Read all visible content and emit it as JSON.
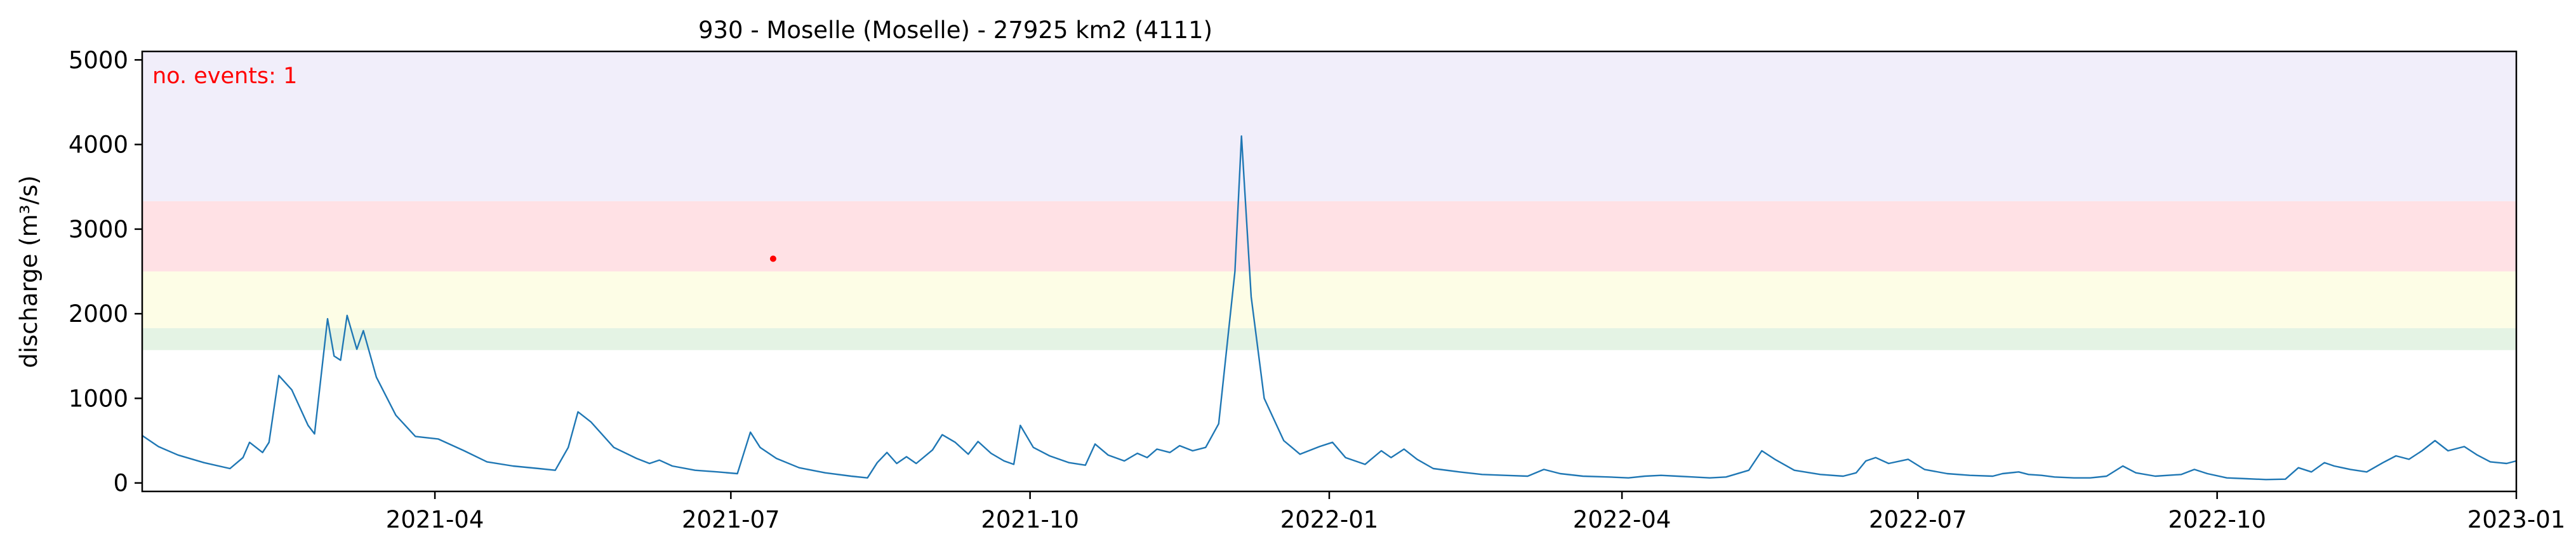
{
  "chart_data": {
    "type": "line",
    "title": "930 - Moselle (Moselle) - 27925 km2 (4111)",
    "xlabel": "",
    "ylabel": "discharge (m³/s)",
    "xlim": [
      "2021-01-01",
      "2023-01-01"
    ],
    "ylim": [
      -100,
      5100
    ],
    "x_ticks": [
      "2021-04",
      "2021-07",
      "2021-10",
      "2022-01",
      "2022-04",
      "2022-07",
      "2022-10",
      "2023-01"
    ],
    "y_ticks": [
      0,
      1000,
      2000,
      3000,
      4000,
      5000
    ],
    "grid": false,
    "line_color": "#1f77b4",
    "threshold_bands": [
      {
        "from": 1570,
        "to": 1830,
        "color": "#e4f3e4"
      },
      {
        "from": 1830,
        "to": 2500,
        "color": "#fdfde6"
      },
      {
        "from": 2500,
        "to": 3330,
        "color": "#ffe1e5"
      },
      {
        "from": 3330,
        "to": 5100,
        "color": "#f1eefa"
      }
    ],
    "annotation": {
      "text": "no. events: 1",
      "color": "#ff0000"
    },
    "events": [
      {
        "x": "2021-07-14",
        "y": 2650,
        "color": "#ff0000"
      }
    ],
    "series": [
      {
        "points": [
          [
            "2021-01-01",
            560
          ],
          [
            "2021-01-06",
            430
          ],
          [
            "2021-01-12",
            330
          ],
          [
            "2021-01-20",
            240
          ],
          [
            "2021-01-28",
            170
          ],
          [
            "2021-02-01",
            300
          ],
          [
            "2021-02-03",
            480
          ],
          [
            "2021-02-07",
            360
          ],
          [
            "2021-02-09",
            480
          ],
          [
            "2021-02-12",
            1270
          ],
          [
            "2021-02-16",
            1100
          ],
          [
            "2021-02-21",
            680
          ],
          [
            "2021-02-23",
            580
          ],
          [
            "2021-02-27",
            1940
          ],
          [
            "2021-03-01",
            1500
          ],
          [
            "2021-03-03",
            1450
          ],
          [
            "2021-03-05",
            1980
          ],
          [
            "2021-03-08",
            1580
          ],
          [
            "2021-03-10",
            1800
          ],
          [
            "2021-03-14",
            1250
          ],
          [
            "2021-03-20",
            800
          ],
          [
            "2021-03-26",
            550
          ],
          [
            "2021-04-02",
            520
          ],
          [
            "2021-04-10",
            380
          ],
          [
            "2021-04-17",
            250
          ],
          [
            "2021-04-25",
            200
          ],
          [
            "2021-05-03",
            170
          ],
          [
            "2021-05-08",
            150
          ],
          [
            "2021-05-12",
            420
          ],
          [
            "2021-05-15",
            840
          ],
          [
            "2021-05-19",
            720
          ],
          [
            "2021-05-26",
            420
          ],
          [
            "2021-06-02",
            290
          ],
          [
            "2021-06-06",
            230
          ],
          [
            "2021-06-09",
            270
          ],
          [
            "2021-06-13",
            200
          ],
          [
            "2021-06-20",
            150
          ],
          [
            "2021-06-27",
            130
          ],
          [
            "2021-07-03",
            110
          ],
          [
            "2021-07-07",
            600
          ],
          [
            "2021-07-10",
            420
          ],
          [
            "2021-07-15",
            290
          ],
          [
            "2021-07-22",
            180
          ],
          [
            "2021-07-30",
            120
          ],
          [
            "2021-08-07",
            80
          ],
          [
            "2021-08-12",
            60
          ],
          [
            "2021-08-15",
            240
          ],
          [
            "2021-08-18",
            360
          ],
          [
            "2021-08-21",
            230
          ],
          [
            "2021-08-24",
            310
          ],
          [
            "2021-08-27",
            230
          ],
          [
            "2021-09-01",
            390
          ],
          [
            "2021-09-04",
            570
          ],
          [
            "2021-09-08",
            480
          ],
          [
            "2021-09-12",
            340
          ],
          [
            "2021-09-15",
            490
          ],
          [
            "2021-09-19",
            350
          ],
          [
            "2021-09-23",
            260
          ],
          [
            "2021-09-26",
            220
          ],
          [
            "2021-09-28",
            680
          ],
          [
            "2021-10-02",
            420
          ],
          [
            "2021-10-07",
            320
          ],
          [
            "2021-10-13",
            240
          ],
          [
            "2021-10-18",
            210
          ],
          [
            "2021-10-21",
            460
          ],
          [
            "2021-10-25",
            330
          ],
          [
            "2021-10-30",
            260
          ],
          [
            "2021-11-03",
            350
          ],
          [
            "2021-11-06",
            300
          ],
          [
            "2021-11-09",
            400
          ],
          [
            "2021-11-13",
            360
          ],
          [
            "2021-11-16",
            440
          ],
          [
            "2021-11-20",
            380
          ],
          [
            "2021-11-24",
            420
          ],
          [
            "2021-11-28",
            700
          ],
          [
            "2021-12-03",
            2500
          ],
          [
            "2021-12-05",
            4100
          ],
          [
            "2021-12-08",
            2200
          ],
          [
            "2021-12-12",
            1000
          ],
          [
            "2021-12-18",
            500
          ],
          [
            "2021-12-23",
            340
          ],
          [
            "2021-12-29",
            430
          ],
          [
            "2022-01-02",
            480
          ],
          [
            "2022-01-06",
            300
          ],
          [
            "2022-01-12",
            220
          ],
          [
            "2022-01-17",
            380
          ],
          [
            "2022-01-20",
            300
          ],
          [
            "2022-01-24",
            400
          ],
          [
            "2022-01-28",
            280
          ],
          [
            "2022-02-02",
            170
          ],
          [
            "2022-02-10",
            130
          ],
          [
            "2022-02-17",
            100
          ],
          [
            "2022-02-24",
            90
          ],
          [
            "2022-03-03",
            80
          ],
          [
            "2022-03-08",
            160
          ],
          [
            "2022-03-13",
            110
          ],
          [
            "2022-03-20",
            80
          ],
          [
            "2022-03-28",
            70
          ],
          [
            "2022-04-03",
            60
          ],
          [
            "2022-04-08",
            80
          ],
          [
            "2022-04-13",
            90
          ],
          [
            "2022-04-18",
            80
          ],
          [
            "2022-04-23",
            70
          ],
          [
            "2022-04-28",
            60
          ],
          [
            "2022-05-03",
            70
          ],
          [
            "2022-05-10",
            150
          ],
          [
            "2022-05-14",
            380
          ],
          [
            "2022-05-18",
            280
          ],
          [
            "2022-05-24",
            150
          ],
          [
            "2022-06-01",
            100
          ],
          [
            "2022-06-08",
            80
          ],
          [
            "2022-06-12",
            120
          ],
          [
            "2022-06-15",
            260
          ],
          [
            "2022-06-18",
            300
          ],
          [
            "2022-06-22",
            230
          ],
          [
            "2022-06-28",
            280
          ],
          [
            "2022-07-03",
            160
          ],
          [
            "2022-07-10",
            110
          ],
          [
            "2022-07-17",
            90
          ],
          [
            "2022-07-24",
            80
          ],
          [
            "2022-07-27",
            110
          ],
          [
            "2022-08-01",
            130
          ],
          [
            "2022-08-04",
            100
          ],
          [
            "2022-08-08",
            90
          ],
          [
            "2022-08-12",
            70
          ],
          [
            "2022-08-18",
            60
          ],
          [
            "2022-08-23",
            60
          ],
          [
            "2022-08-28",
            80
          ],
          [
            "2022-09-02",
            200
          ],
          [
            "2022-09-06",
            120
          ],
          [
            "2022-09-12",
            80
          ],
          [
            "2022-09-20",
            100
          ],
          [
            "2022-09-24",
            160
          ],
          [
            "2022-09-28",
            110
          ],
          [
            "2022-10-04",
            60
          ],
          [
            "2022-10-10",
            50
          ],
          [
            "2022-10-16",
            40
          ],
          [
            "2022-10-22",
            45
          ],
          [
            "2022-10-26",
            180
          ],
          [
            "2022-10-30",
            130
          ],
          [
            "2022-11-03",
            240
          ],
          [
            "2022-11-06",
            200
          ],
          [
            "2022-11-11",
            160
          ],
          [
            "2022-11-16",
            130
          ],
          [
            "2022-11-21",
            240
          ],
          [
            "2022-11-25",
            320
          ],
          [
            "2022-11-29",
            280
          ],
          [
            "2022-12-03",
            380
          ],
          [
            "2022-12-07",
            500
          ],
          [
            "2022-12-11",
            380
          ],
          [
            "2022-12-16",
            430
          ],
          [
            "2022-12-20",
            330
          ],
          [
            "2022-12-24",
            250
          ],
          [
            "2022-12-29",
            230
          ],
          [
            "2023-01-01",
            260
          ]
        ]
      }
    ]
  }
}
